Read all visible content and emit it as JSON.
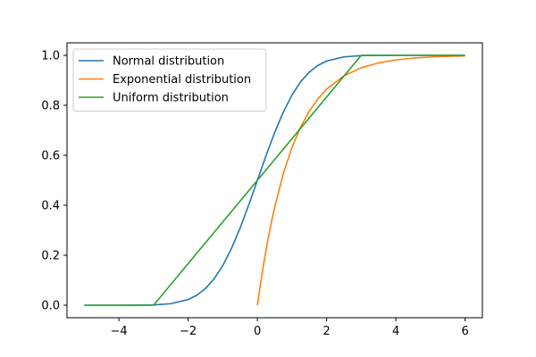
{
  "chart_data": {
    "type": "line",
    "title": "",
    "xlabel": "",
    "ylabel": "",
    "xlim": [
      -5.5,
      6.5
    ],
    "ylim": [
      -0.05,
      1.05
    ],
    "xticks": [
      -4,
      -2,
      0,
      2,
      4,
      6
    ],
    "yticks": [
      0.0,
      0.2,
      0.4,
      0.6,
      0.8,
      1.0
    ],
    "xtick_labels": [
      "−4",
      "−2",
      "0",
      "2",
      "4",
      "6"
    ],
    "ytick_labels": [
      "0.0",
      "0.2",
      "0.4",
      "0.6",
      "0.8",
      "1.0"
    ],
    "grid": false,
    "legend_position": "top-left",
    "series": [
      {
        "name": "Normal distribution",
        "color": "#1f77b4",
        "x": [
          -5,
          -4.5,
          -4,
          -3.5,
          -3,
          -2.5,
          -2,
          -1.75,
          -1.5,
          -1.25,
          -1,
          -0.75,
          -0.5,
          -0.25,
          0,
          0.25,
          0.5,
          0.75,
          1,
          1.25,
          1.5,
          1.75,
          2,
          2.5,
          3,
          3.5,
          4,
          4.5,
          5,
          5.5,
          6
        ],
        "y": [
          0.0,
          0.0,
          0.0,
          0.0002,
          0.0013,
          0.0062,
          0.0228,
          0.0401,
          0.0668,
          0.1056,
          0.1587,
          0.2266,
          0.3085,
          0.4013,
          0.5,
          0.5987,
          0.6915,
          0.7734,
          0.8413,
          0.8944,
          0.9332,
          0.9599,
          0.9772,
          0.9938,
          0.9987,
          0.9998,
          1.0,
          1.0,
          1.0,
          1.0,
          1.0
        ]
      },
      {
        "name": "Exponential distribution",
        "color": "#ff7f0e",
        "x": [
          0,
          0.1,
          0.2,
          0.3,
          0.4,
          0.5,
          0.75,
          1,
          1.25,
          1.5,
          1.75,
          2,
          2.5,
          3,
          3.5,
          4,
          4.5,
          5,
          5.5,
          6
        ],
        "y": [
          0.0,
          0.0952,
          0.1813,
          0.2592,
          0.3297,
          0.3935,
          0.5276,
          0.6321,
          0.7135,
          0.7769,
          0.8262,
          0.8647,
          0.9179,
          0.9502,
          0.9698,
          0.9817,
          0.9889,
          0.9933,
          0.9959,
          0.9975
        ]
      },
      {
        "name": "Uniform distribution",
        "color": "#2ca02c",
        "x": [
          -5,
          -3,
          3,
          6
        ],
        "y": [
          0.0,
          0.0,
          1.0,
          1.0
        ]
      }
    ]
  }
}
